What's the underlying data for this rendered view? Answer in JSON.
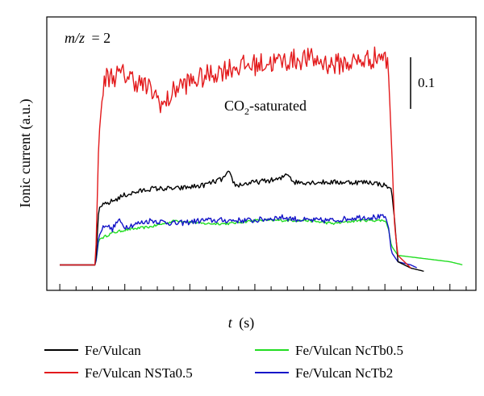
{
  "chart_data": {
    "type": "line",
    "title": "",
    "xlabel": "t",
    "xunit": "(s)",
    "ylabel": "Ionic current (a.u.)",
    "xlim": [
      -2,
      64
    ],
    "ylim": [
      -0.02,
      0.84
    ],
    "grid": false,
    "legend_position": "bottom",
    "annotations": {
      "mz_prefix": "m/z",
      "mz_value": "= 2",
      "condition_prefix": "CO",
      "condition_subscript": "2",
      "condition_suffix": "-saturated",
      "scale_bar_label": "0.1",
      "scale_bar_value": 0.1
    },
    "series": [
      {
        "name": "Fe/Vulcan",
        "color": "#000000",
        "points": [
          [
            0,
            0.06
          ],
          [
            5.5,
            0.06
          ],
          [
            6,
            0.24
          ],
          [
            8,
            0.26
          ],
          [
            10,
            0.28
          ],
          [
            14,
            0.3
          ],
          [
            18,
            0.3
          ],
          [
            22,
            0.31
          ],
          [
            25,
            0.33
          ],
          [
            26,
            0.35
          ],
          [
            27,
            0.31
          ],
          [
            30,
            0.32
          ],
          [
            34,
            0.33
          ],
          [
            35,
            0.35
          ],
          [
            36,
            0.32
          ],
          [
            40,
            0.32
          ],
          [
            44,
            0.32
          ],
          [
            48,
            0.32
          ],
          [
            50,
            0.31
          ],
          [
            51,
            0.3
          ],
          [
            51.5,
            0.2
          ],
          [
            52,
            0.07
          ],
          [
            54,
            0.05
          ],
          [
            56,
            0.04
          ]
        ],
        "noise": 0.008
      },
      {
        "name": "Fe/Vulcan NSTa0.5",
        "color": "#e31a1c",
        "points": [
          [
            0,
            0.06
          ],
          [
            5.5,
            0.06
          ],
          [
            6,
            0.46
          ],
          [
            6.5,
            0.58
          ],
          [
            7,
            0.65
          ],
          [
            10,
            0.66
          ],
          [
            14,
            0.61
          ],
          [
            16,
            0.56
          ],
          [
            18,
            0.62
          ],
          [
            22,
            0.65
          ],
          [
            26,
            0.68
          ],
          [
            30,
            0.69
          ],
          [
            34,
            0.7
          ],
          [
            38,
            0.71
          ],
          [
            42,
            0.69
          ],
          [
            46,
            0.7
          ],
          [
            48,
            0.71
          ],
          [
            49.5,
            0.72
          ],
          [
            50.5,
            0.69
          ],
          [
            51,
            0.45
          ],
          [
            51.5,
            0.18
          ],
          [
            52,
            0.09
          ],
          [
            54,
            0.05
          ]
        ],
        "noise": 0.035
      },
      {
        "name": "Fe/Vulcan NcTb0.5",
        "color": "#22dd22",
        "points": [
          [
            0,
            0.06
          ],
          [
            5.5,
            0.06
          ],
          [
            6,
            0.14
          ],
          [
            8,
            0.16
          ],
          [
            10,
            0.17
          ],
          [
            14,
            0.18
          ],
          [
            18,
            0.2
          ],
          [
            22,
            0.19
          ],
          [
            26,
            0.19
          ],
          [
            30,
            0.2
          ],
          [
            34,
            0.2
          ],
          [
            38,
            0.2
          ],
          [
            42,
            0.19
          ],
          [
            46,
            0.2
          ],
          [
            49,
            0.2
          ],
          [
            50,
            0.2
          ],
          [
            50.5,
            0.18
          ],
          [
            51,
            0.12
          ],
          [
            52,
            0.09
          ],
          [
            54,
            0.085
          ],
          [
            56,
            0.08
          ],
          [
            58,
            0.075
          ],
          [
            60,
            0.07
          ],
          [
            62,
            0.06
          ]
        ],
        "noise": 0.004
      },
      {
        "name": "Fe/Vulcan NcTb2",
        "color": "#1515c8",
        "points": [
          [
            0,
            0.06
          ],
          [
            5.5,
            0.06
          ],
          [
            6,
            0.15
          ],
          [
            7,
            0.19
          ],
          [
            8,
            0.17
          ],
          [
            9,
            0.2
          ],
          [
            10,
            0.18
          ],
          [
            14,
            0.2
          ],
          [
            18,
            0.19
          ],
          [
            22,
            0.2
          ],
          [
            26,
            0.2
          ],
          [
            30,
            0.2
          ],
          [
            34,
            0.21
          ],
          [
            38,
            0.2
          ],
          [
            42,
            0.2
          ],
          [
            46,
            0.21
          ],
          [
            49,
            0.21
          ],
          [
            50,
            0.21
          ],
          [
            50.5,
            0.19
          ],
          [
            51,
            0.1
          ],
          [
            52,
            0.07
          ],
          [
            54,
            0.06
          ],
          [
            55,
            0.05
          ]
        ],
        "noise": 0.009
      }
    ],
    "legend": [
      "Fe/Vulcan",
      "Fe/Vulcan NcTb0.5",
      "Fe/Vulcan NSTa0.5",
      "Fe/Vulcan NcTb2"
    ]
  }
}
